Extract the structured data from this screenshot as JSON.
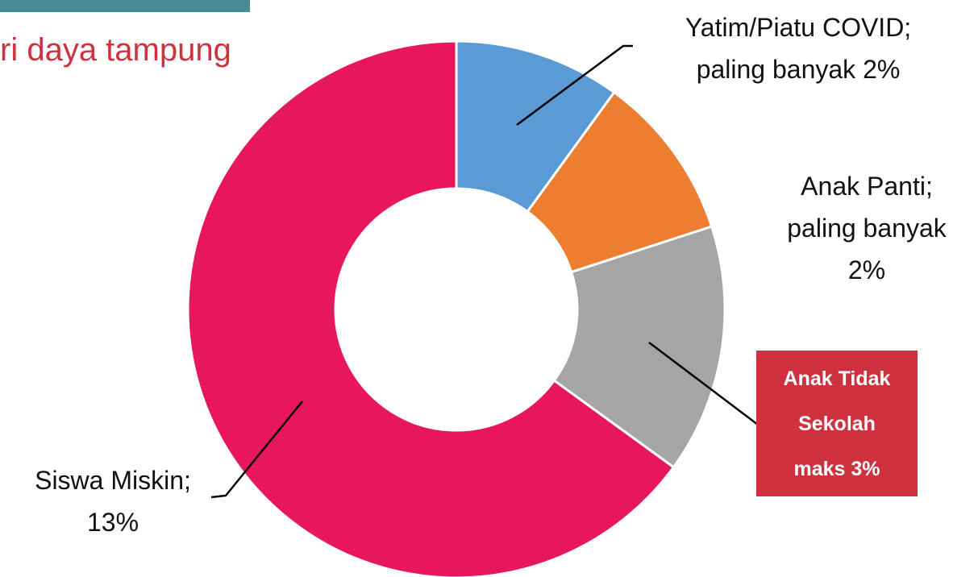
{
  "chart_data": {
    "type": "donut",
    "title": "ri daya tampung",
    "categories": [
      "Yatim/Piatu COVID;",
      "Anak Panti;",
      "Anak Tidak Sekolah",
      "Siswa Miskin;"
    ],
    "values": [
      2,
      2,
      3,
      13
    ],
    "value_labels": [
      "paling banyak 2%",
      "paling banyak 2%",
      "maks 3%",
      "13%"
    ],
    "colors": [
      "#5b9bd5",
      "#ed7d31",
      "#a5a5a5",
      "#e8175d"
    ]
  }
}
